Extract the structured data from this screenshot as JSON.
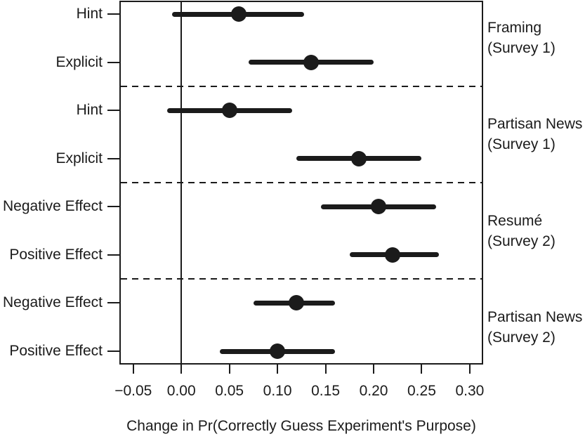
{
  "chart_data": {
    "type": "scatter",
    "subtype": "dot-and-whisker coefficient plot",
    "title": "",
    "xlabel": "Change in Pr(Correctly Guess Experiment's Purpose)",
    "ylabel": "",
    "xlim": [
      -0.063,
      0.3125
    ],
    "x_ticks": [
      -0.05,
      0,
      0.05,
      0.1,
      0.15,
      0.2,
      0.25,
      0.3
    ],
    "x_tick_labels": [
      "−0.05",
      "0.00",
      "0.05",
      "0.10",
      "0.15",
      "0.20",
      "0.25",
      "0.30"
    ],
    "reference_line_x": 0,
    "grid": "off",
    "legend": "none",
    "separator_style": "dashed",
    "groups": [
      {
        "label": "Framing (Survey 1)",
        "label_lines": [
          "Framing",
          "(Survey 1)"
        ],
        "rows": [
          {
            "label": "Hint",
            "estimate": 0.06,
            "ci_low": -0.01,
            "ci_high": 0.128
          },
          {
            "label": "Explicit",
            "estimate": 0.135,
            "ci_low": 0.07,
            "ci_high": 0.2
          }
        ]
      },
      {
        "label": "Partisan News (Survey 1)",
        "label_lines": [
          "Partisan News",
          "(Survey 1)"
        ],
        "rows": [
          {
            "label": "Hint",
            "estimate": 0.05,
            "ci_low": -0.015,
            "ci_high": 0.115
          },
          {
            "label": "Explicit",
            "estimate": 0.185,
            "ci_low": 0.12,
            "ci_high": 0.25
          }
        ]
      },
      {
        "label": "Resumé (Survey 2)",
        "label_lines": [
          "Resumé",
          "(Survey 2)"
        ],
        "rows": [
          {
            "label": "Negative Effect",
            "estimate": 0.205,
            "ci_low": 0.145,
            "ci_high": 0.265
          },
          {
            "label": "Positive Effect",
            "estimate": 0.22,
            "ci_low": 0.175,
            "ci_high": 0.268
          }
        ]
      },
      {
        "label": "Partisan News (Survey 2)",
        "label_lines": [
          "Partisan News",
          "(Survey 2)"
        ],
        "rows": [
          {
            "label": "Negative Effect",
            "estimate": 0.12,
            "ci_low": 0.075,
            "ci_high": 0.16
          },
          {
            "label": "Positive Effect",
            "estimate": 0.1,
            "ci_low": 0.04,
            "ci_high": 0.16
          }
        ]
      }
    ],
    "colors": {
      "foreground": "#1b1b1b",
      "background": "#ffffff"
    }
  }
}
